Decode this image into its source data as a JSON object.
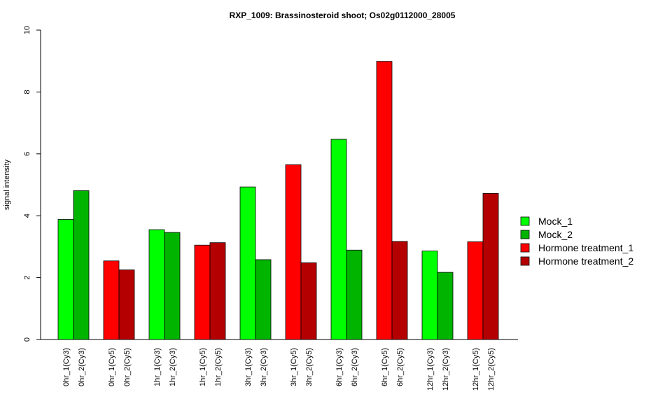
{
  "chart_data": {
    "type": "bar",
    "title": "RXP_1009: Brassinosteroid shoot; Os02g0112000_28005",
    "xlabel": "",
    "ylabel": "signal intensity",
    "ylim": [
      0,
      10
    ],
    "yticks": [
      0,
      2,
      4,
      6,
      8,
      10
    ],
    "grid": false,
    "legend_position": "right",
    "series_colors": {
      "Mock_1": "#00ff00",
      "Mock_2": "#00b400",
      "Hormone treatment_1": "#ff0000",
      "Hormone treatment_2": "#b40000"
    },
    "legend": [
      "Mock_1",
      "Mock_2",
      "Hormone treatment_1",
      "Hormone treatment_2"
    ],
    "bars": [
      {
        "label": "0hr_1(Cy3)",
        "value": 3.88,
        "series": "Mock_1"
      },
      {
        "label": "0hr_2(Cy3)",
        "value": 4.81,
        "series": "Mock_2"
      },
      {
        "label": "0hr_1(Cy5)",
        "value": 2.54,
        "series": "Hormone treatment_1"
      },
      {
        "label": "0hr_2(Cy5)",
        "value": 2.25,
        "series": "Hormone treatment_2"
      },
      {
        "label": "1hr_1(Cy3)",
        "value": 3.55,
        "series": "Mock_1"
      },
      {
        "label": "1hr_2(Cy3)",
        "value": 3.46,
        "series": "Mock_2"
      },
      {
        "label": "1hr_1(Cy5)",
        "value": 3.05,
        "series": "Hormone treatment_1"
      },
      {
        "label": "1hr_2(Cy5)",
        "value": 3.13,
        "series": "Hormone treatment_2"
      },
      {
        "label": "3hr_1(Cy3)",
        "value": 4.93,
        "series": "Mock_1"
      },
      {
        "label": "3hr_2(Cy3)",
        "value": 2.58,
        "series": "Mock_2"
      },
      {
        "label": "3hr_1(Cy5)",
        "value": 5.65,
        "series": "Hormone treatment_1"
      },
      {
        "label": "3hr_2(Cy5)",
        "value": 2.48,
        "series": "Hormone treatment_2"
      },
      {
        "label": "6hr_1(Cy3)",
        "value": 6.47,
        "series": "Mock_1"
      },
      {
        "label": "6hr_2(Cy3)",
        "value": 2.89,
        "series": "Mock_2"
      },
      {
        "label": "6hr_1(Cy5)",
        "value": 8.99,
        "series": "Hormone treatment_1"
      },
      {
        "label": "6hr_2(Cy5)",
        "value": 3.17,
        "series": "Hormone treatment_2"
      },
      {
        "label": "12hr_1(Cy3)",
        "value": 2.86,
        "series": "Mock_1"
      },
      {
        "label": "12hr_2(Cy3)",
        "value": 2.17,
        "series": "Mock_2"
      },
      {
        "label": "12hr_1(Cy5)",
        "value": 3.16,
        "series": "Hormone treatment_1"
      },
      {
        "label": "12hr_2(Cy5)",
        "value": 4.72,
        "series": "Hormone treatment_2"
      }
    ]
  }
}
